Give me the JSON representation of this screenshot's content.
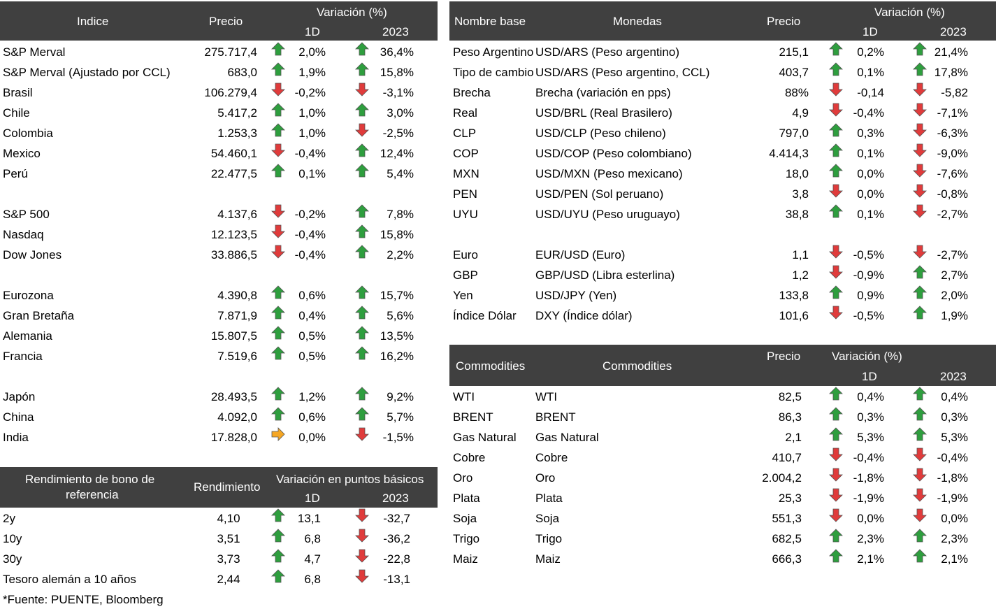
{
  "colors": {
    "up": "#2E9E3E",
    "down": "#E03B3B",
    "flat": "#F5A623",
    "header_bg": "#404040"
  },
  "indices": {
    "header": {
      "col1": "Indice",
      "col2": "Precio",
      "var": "Variación (%)",
      "d1": "1D",
      "y": "2023"
    },
    "rows": [
      {
        "name": "S&P Merval",
        "price": "275.717,4",
        "d1": "2,0%",
        "d1_dir": "up",
        "y": "36,4%",
        "y_dir": "up",
        "slot": 0
      },
      {
        "name": "S&P Merval (Ajustado por CCL)",
        "price": "683,0",
        "d1": "1,9%",
        "d1_dir": "up",
        "y": "15,8%",
        "y_dir": "up",
        "slot": 1
      },
      {
        "name": "Brasil",
        "price": "106.279,4",
        "d1": "-0,2%",
        "d1_dir": "down",
        "y": "-3,1%",
        "y_dir": "down",
        "slot": 2
      },
      {
        "name": "Chile",
        "price": "5.417,2",
        "d1": "1,0%",
        "d1_dir": "up",
        "y": "3,0%",
        "y_dir": "up",
        "slot": 3
      },
      {
        "name": "Colombia",
        "price": "1.253,3",
        "d1": "1,0%",
        "d1_dir": "up",
        "y": "-2,5%",
        "y_dir": "down",
        "slot": 4
      },
      {
        "name": "Mexico",
        "price": "54.460,1",
        "d1": "-0,4%",
        "d1_dir": "down",
        "y": "12,4%",
        "y_dir": "up",
        "slot": 5
      },
      {
        "name": "Perú",
        "price": "22.477,5",
        "d1": "0,1%",
        "d1_dir": "up",
        "y": "5,4%",
        "y_dir": "up",
        "slot": 6
      },
      {
        "name": "S&P 500",
        "price": "4.137,6",
        "d1": "-0,2%",
        "d1_dir": "down",
        "y": "7,8%",
        "y_dir": "up",
        "slot": 8
      },
      {
        "name": "Nasdaq",
        "price": "12.123,5",
        "d1": "-0,4%",
        "d1_dir": "down",
        "y": "15,8%",
        "y_dir": "up",
        "slot": 9
      },
      {
        "name": "Dow Jones",
        "price": "33.886,5",
        "d1": "-0,4%",
        "d1_dir": "down",
        "y": "2,2%",
        "y_dir": "up",
        "slot": 10
      },
      {
        "name": "Eurozona",
        "price": "4.390,8",
        "d1": "0,6%",
        "d1_dir": "up",
        "y": "15,7%",
        "y_dir": "up",
        "slot": 12
      },
      {
        "name": "Gran Bretaña",
        "price": "7.871,9",
        "d1": "0,4%",
        "d1_dir": "up",
        "y": "5,6%",
        "y_dir": "up",
        "slot": 13
      },
      {
        "name": "Alemania",
        "price": "15.807,5",
        "d1": "0,5%",
        "d1_dir": "up",
        "y": "13,5%",
        "y_dir": "up",
        "slot": 14
      },
      {
        "name": "Francia",
        "price": "7.519,6",
        "d1": "0,5%",
        "d1_dir": "up",
        "y": "16,2%",
        "y_dir": "up",
        "slot": 15
      },
      {
        "name": "Japón",
        "price": "28.493,5",
        "d1": "1,2%",
        "d1_dir": "up",
        "y": "9,2%",
        "y_dir": "up",
        "slot": 17
      },
      {
        "name": "China",
        "price": "4.092,0",
        "d1": "0,6%",
        "d1_dir": "up",
        "y": "5,7%",
        "y_dir": "up",
        "slot": 18
      },
      {
        "name": "India",
        "price": "17.828,0",
        "d1": "0,0%",
        "d1_dir": "flat",
        "y": "-1,5%",
        "y_dir": "down",
        "slot": 19
      }
    ]
  },
  "bonds": {
    "header": {
      "col1_line1": "Rendimiento de bono de",
      "col1_line2": "referencia",
      "col2": "Rendimiento",
      "var": "Variación en puntos básicos",
      "d1": "1D",
      "y": "2023"
    },
    "rows": [
      {
        "name": "2y",
        "price": "4,10",
        "d1": "13,1",
        "d1_dir": "up",
        "y": "-32,7",
        "y_dir": "down",
        "slot": 0
      },
      {
        "name": "10y",
        "price": "3,51",
        "d1": "6,8",
        "d1_dir": "up",
        "y": "-36,2",
        "y_dir": "down",
        "slot": 1
      },
      {
        "name": "30y",
        "price": "3,73",
        "d1": "4,7",
        "d1_dir": "up",
        "y": "-22,8",
        "y_dir": "down",
        "slot": 2
      },
      {
        "name": "Tesoro alemán a 10 años",
        "price": "2,44",
        "d1": "6,8",
        "d1_dir": "up",
        "y": "-13,1",
        "y_dir": "down",
        "slot": 3
      }
    ],
    "source": "*Fuente: PUENTE, Bloomberg"
  },
  "currencies": {
    "header": {
      "col1": "Nombre base",
      "col2": "Monedas",
      "col3": "Precio",
      "var": "Variación (%)",
      "d1": "1D",
      "y": "2023"
    },
    "rows": [
      {
        "name": "Peso Argentino",
        "desc": "USD/ARS (Peso argentino)",
        "price": "215,1",
        "d1": "0,2%",
        "d1_dir": "up",
        "y": "21,4%",
        "y_dir": "up",
        "slot": 0
      },
      {
        "name": "Tipo de cambio CCL",
        "desc": "USD/ARS (Peso argentino, CCL)",
        "price": "403,7",
        "d1": "0,1%",
        "d1_dir": "up",
        "y": "17,8%",
        "y_dir": "up",
        "slot": 1
      },
      {
        "name": "Brecha",
        "desc": "Brecha (variación en pps)",
        "price": "88%",
        "d1": "-0,14",
        "d1_dir": "down",
        "y": "-5,82",
        "y_dir": "down",
        "slot": 2
      },
      {
        "name": "Real",
        "desc": "USD/BRL (Real Brasilero)",
        "price": "4,9",
        "d1": "-0,4%",
        "d1_dir": "down",
        "y": "-7,1%",
        "y_dir": "down",
        "slot": 3
      },
      {
        "name": "CLP",
        "desc": "USD/CLP (Peso chileno)",
        "price": "797,0",
        "d1": "0,3%",
        "d1_dir": "up",
        "y": "-6,3%",
        "y_dir": "down",
        "slot": 4
      },
      {
        "name": "COP",
        "desc": "USD/COP (Peso colombiano)",
        "price": "4.414,3",
        "d1": "0,1%",
        "d1_dir": "up",
        "y": "-9,0%",
        "y_dir": "down",
        "slot": 5
      },
      {
        "name": "MXN",
        "desc": "USD/MXN (Peso mexicano)",
        "price": "18,0",
        "d1": "0,0%",
        "d1_dir": "up",
        "y": "-7,6%",
        "y_dir": "down",
        "slot": 6
      },
      {
        "name": "PEN",
        "desc": "USD/PEN (Sol peruano)",
        "price": "3,8",
        "d1": "0,0%",
        "d1_dir": "down",
        "y": "-0,8%",
        "y_dir": "down",
        "slot": 7
      },
      {
        "name": "UYU",
        "desc": "USD/UYU (Peso uruguayo)",
        "price": "38,8",
        "d1": "0,1%",
        "d1_dir": "up",
        "y": "-2,7%",
        "y_dir": "down",
        "slot": 8
      },
      {
        "name": "Euro",
        "desc": "EUR/USD (Euro)",
        "price": "1,1",
        "d1": "-0,5%",
        "d1_dir": "down",
        "y": "-2,7%",
        "y_dir": "down",
        "slot": 10
      },
      {
        "name": "GBP",
        "desc": "GBP/USD (Libra esterlina)",
        "price": "1,2",
        "d1": "-0,9%",
        "d1_dir": "down",
        "y": "2,7%",
        "y_dir": "up",
        "slot": 11
      },
      {
        "name": "Yen",
        "desc": "USD/JPY (Yen)",
        "price": "133,8",
        "d1": "0,9%",
        "d1_dir": "up",
        "y": "2,0%",
        "y_dir": "up",
        "slot": 12
      },
      {
        "name": "Índice Dólar",
        "desc": "DXY (Índice dólar)",
        "price": "101,6",
        "d1": "-0,5%",
        "d1_dir": "down",
        "y": "1,9%",
        "y_dir": "up",
        "slot": 13
      }
    ]
  },
  "commodities": {
    "header": {
      "col1": "Commodities",
      "col2": "Commodities",
      "col3": "Precio",
      "var": "Variación (%)",
      "d1": "1D",
      "y": "2023"
    },
    "rows": [
      {
        "name": "WTI",
        "desc": "WTI",
        "price": "82,5",
        "d1": "0,4%",
        "d1_dir": "up",
        "y": "0,4%",
        "y_dir": "up",
        "slot": 0
      },
      {
        "name": "BRENT",
        "desc": "BRENT",
        "price": "86,3",
        "d1": "0,3%",
        "d1_dir": "up",
        "y": "0,3%",
        "y_dir": "up",
        "slot": 1
      },
      {
        "name": "Gas Natural",
        "desc": "Gas Natural",
        "price": "2,1",
        "d1": "5,3%",
        "d1_dir": "up",
        "y": "5,3%",
        "y_dir": "up",
        "slot": 2
      },
      {
        "name": "Cobre",
        "desc": "Cobre",
        "price": "410,7",
        "d1": "-0,4%",
        "d1_dir": "down",
        "y": "-0,4%",
        "y_dir": "down",
        "slot": 3
      },
      {
        "name": "Oro",
        "desc": "Oro",
        "price": "2.004,2",
        "d1": "-1,8%",
        "d1_dir": "down",
        "y": "-1,8%",
        "y_dir": "down",
        "slot": 4
      },
      {
        "name": "Plata",
        "desc": "Plata",
        "price": "25,3",
        "d1": "-1,9%",
        "d1_dir": "down",
        "y": "-1,9%",
        "y_dir": "down",
        "slot": 5
      },
      {
        "name": "Soja",
        "desc": "Soja",
        "price": "551,3",
        "d1": "0,0%",
        "d1_dir": "down",
        "y": "0,0%",
        "y_dir": "down",
        "slot": 6
      },
      {
        "name": "Trigo",
        "desc": "Trigo",
        "price": "682,5",
        "d1": "2,3%",
        "d1_dir": "up",
        "y": "2,3%",
        "y_dir": "up",
        "slot": 7
      },
      {
        "name": "Maiz",
        "desc": "Maiz",
        "price": "666,3",
        "d1": "2,1%",
        "d1_dir": "up",
        "y": "2,1%",
        "y_dir": "up",
        "slot": 8
      }
    ]
  }
}
